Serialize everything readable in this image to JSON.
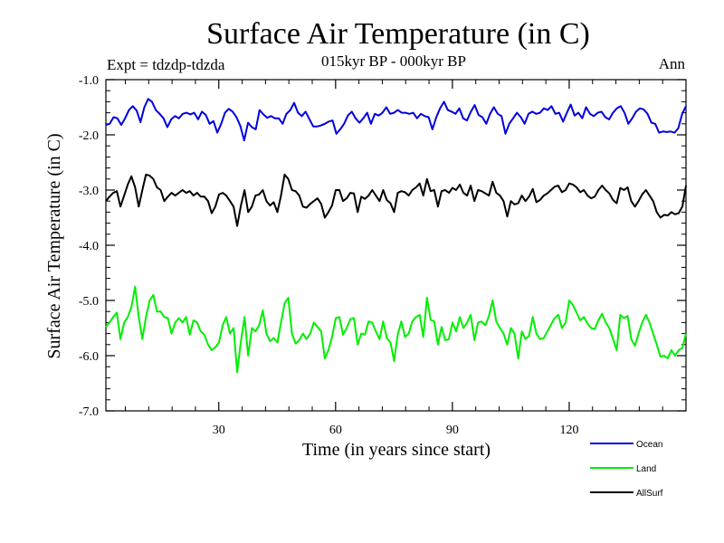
{
  "chart_data": {
    "type": "line",
    "title": "Surface Air Temperature (in C)",
    "subtitle": "015kyr BP - 000kyr BP",
    "left_note": "Expt = tdzdp-tdzda",
    "right_note": "Ann",
    "xlabel": "Time (in years since start)",
    "ylabel": "Surface Air Temperature (in C)",
    "xlim": [
      1,
      150
    ],
    "ylim": [
      -7.0,
      -1.0
    ],
    "xticks": [
      30,
      60,
      90,
      120
    ],
    "xtick_labels": [
      "30",
      "60",
      "90",
      "120"
    ],
    "yticks": [
      -1.0,
      -2.0,
      -3.0,
      -4.0,
      -5.0,
      -6.0,
      -7.0
    ],
    "ytick_labels": [
      "-1.0",
      "-2.0",
      "-3.0",
      "-4.0",
      "-5.0",
      "-6.0",
      "-7.0"
    ],
    "series": [
      {
        "name": "Ocean",
        "color": "#0000dd",
        "values": [
          -1.82,
          -1.8,
          -1.68,
          -1.7,
          -1.82,
          -1.7,
          -1.55,
          -1.48,
          -1.56,
          -1.77,
          -1.5,
          -1.35,
          -1.4,
          -1.55,
          -1.62,
          -1.7,
          -1.86,
          -1.72,
          -1.66,
          -1.7,
          -1.62,
          -1.6,
          -1.63,
          -1.6,
          -1.72,
          -1.58,
          -1.64,
          -1.8,
          -1.75,
          -1.96,
          -1.8,
          -1.6,
          -1.53,
          -1.58,
          -1.68,
          -1.84,
          -2.1,
          -1.78,
          -1.86,
          -1.9,
          -1.55,
          -1.63,
          -1.69,
          -1.66,
          -1.7,
          -1.7,
          -1.8,
          -1.62,
          -1.55,
          -1.42,
          -1.6,
          -1.66,
          -1.58,
          -1.72,
          -1.85,
          -1.85,
          -1.83,
          -1.8,
          -1.76,
          -1.74,
          -1.98,
          -1.9,
          -1.8,
          -1.65,
          -1.58,
          -1.7,
          -1.78,
          -1.7,
          -1.6,
          -1.8,
          -1.62,
          -1.65,
          -1.6,
          -1.5,
          -1.62,
          -1.6,
          -1.55,
          -1.6,
          -1.6,
          -1.62,
          -1.6,
          -1.7,
          -1.62,
          -1.66,
          -1.68,
          -1.9,
          -1.68,
          -1.52,
          -1.4,
          -1.55,
          -1.58,
          -1.62,
          -1.52,
          -1.7,
          -1.74,
          -1.58,
          -1.46,
          -1.64,
          -1.68,
          -1.8,
          -1.62,
          -1.5,
          -1.62,
          -1.66,
          -1.98,
          -1.8,
          -1.7,
          -1.6,
          -1.68,
          -1.8,
          -1.62,
          -1.58,
          -1.62,
          -1.6,
          -1.52,
          -1.55,
          -1.48,
          -1.62,
          -1.6,
          -1.76,
          -1.6,
          -1.45,
          -1.65,
          -1.6,
          -1.7,
          -1.5,
          -1.62,
          -1.66,
          -1.6,
          -1.58,
          -1.68,
          -1.72,
          -1.6,
          -1.52,
          -1.48,
          -1.6,
          -1.8,
          -1.7,
          -1.58,
          -1.52,
          -1.54,
          -1.62,
          -1.78,
          -1.8,
          -1.96,
          -1.94,
          -1.95,
          -1.94,
          -1.96,
          -1.88,
          -1.62,
          -1.48
        ]
      },
      {
        "name": "Land",
        "color": "#00ee00",
        "values": [
          -5.48,
          -5.4,
          -5.3,
          -5.22,
          -5.7,
          -5.4,
          -5.3,
          -5.12,
          -4.75,
          -5.3,
          -5.7,
          -5.3,
          -5.0,
          -4.9,
          -5.2,
          -5.2,
          -5.3,
          -5.32,
          -5.6,
          -5.4,
          -5.32,
          -5.4,
          -5.3,
          -5.62,
          -5.36,
          -5.4,
          -5.56,
          -5.62,
          -5.8,
          -5.9,
          -5.85,
          -5.76,
          -5.45,
          -5.3,
          -5.6,
          -5.5,
          -6.3,
          -5.74,
          -5.3,
          -6.0,
          -5.5,
          -5.56,
          -5.45,
          -5.18,
          -5.6,
          -5.74,
          -5.68,
          -5.76,
          -5.4,
          -5.05,
          -4.95,
          -5.6,
          -5.78,
          -5.72,
          -5.6,
          -5.7,
          -5.6,
          -5.4,
          -5.48,
          -5.56,
          -6.05,
          -5.9,
          -5.66,
          -5.32,
          -5.3,
          -5.62,
          -5.5,
          -5.34,
          -5.32,
          -5.8,
          -5.6,
          -5.62,
          -5.38,
          -5.4,
          -5.56,
          -5.7,
          -5.38,
          -5.68,
          -5.76,
          -6.1,
          -5.62,
          -5.38,
          -5.66,
          -5.6,
          -5.38,
          -5.3,
          -5.26,
          -5.66,
          -4.95,
          -5.35,
          -5.38,
          -5.8,
          -5.48,
          -5.72,
          -5.7,
          -5.4,
          -5.56,
          -5.3,
          -5.5,
          -5.4,
          -5.26,
          -5.72,
          -5.4,
          -5.38,
          -5.45,
          -5.28,
          -5.0,
          -5.38,
          -5.5,
          -5.6,
          -5.8,
          -5.5,
          -5.6,
          -6.05,
          -5.56,
          -5.7,
          -5.64,
          -5.3,
          -5.6,
          -5.7,
          -5.68,
          -5.56,
          -5.44,
          -5.32,
          -5.26,
          -5.5,
          -5.4,
          -5.0,
          -5.08,
          -5.22,
          -5.36,
          -5.3,
          -5.42,
          -5.5,
          -5.52,
          -5.36,
          -5.24,
          -5.4,
          -5.5,
          -5.7,
          -5.9,
          -5.26,
          -5.32,
          -5.28,
          -5.7,
          -5.82,
          -5.6,
          -5.4,
          -5.26,
          -5.4,
          -5.6,
          -5.8,
          -6.02,
          -6.0,
          -6.05,
          -5.9,
          -6.0,
          -5.9,
          -5.86,
          -5.6
        ]
      },
      {
        "name": "AllSurf",
        "color": "#000000",
        "values": [
          -3.2,
          -3.12,
          -3.05,
          -3.02,
          -3.3,
          -3.1,
          -2.9,
          -2.75,
          -2.95,
          -3.3,
          -3.0,
          -2.72,
          -2.74,
          -2.8,
          -2.95,
          -3.0,
          -3.2,
          -3.12,
          -3.05,
          -3.1,
          -3.05,
          -3.0,
          -3.05,
          -3.02,
          -3.1,
          -3.05,
          -3.12,
          -3.12,
          -3.2,
          -3.42,
          -3.3,
          -3.08,
          -3.05,
          -3.1,
          -3.2,
          -3.3,
          -3.65,
          -3.28,
          -3.0,
          -3.4,
          -3.3,
          -3.1,
          -3.08,
          -3.0,
          -3.2,
          -3.28,
          -3.22,
          -3.4,
          -3.1,
          -2.72,
          -2.8,
          -3.0,
          -3.02,
          -3.1,
          -3.3,
          -3.32,
          -3.25,
          -3.2,
          -3.15,
          -3.25,
          -3.5,
          -3.4,
          -3.28,
          -3.0,
          -3.0,
          -3.2,
          -3.15,
          -3.05,
          -3.06,
          -3.4,
          -3.12,
          -3.16,
          -3.1,
          -3.0,
          -3.1,
          -3.2,
          -3.0,
          -3.18,
          -3.24,
          -3.4,
          -3.05,
          -3.02,
          -3.04,
          -3.1,
          -3.0,
          -2.95,
          -2.88,
          -3.1,
          -2.8,
          -3.02,
          -3.0,
          -3.3,
          -3.02,
          -3.0,
          -3.05,
          -2.96,
          -3.0,
          -2.9,
          -3.05,
          -3.1,
          -2.92,
          -3.2,
          -3.0,
          -3.02,
          -3.06,
          -3.1,
          -2.85,
          -3.05,
          -3.1,
          -3.2,
          -3.48,
          -3.2,
          -3.26,
          -3.24,
          -3.1,
          -3.2,
          -3.12,
          -2.98,
          -3.22,
          -3.18,
          -3.1,
          -3.06,
          -3.0,
          -2.94,
          -2.92,
          -3.04,
          -3.0,
          -2.88,
          -2.9,
          -2.95,
          -3.04,
          -3.0,
          -3.1,
          -3.15,
          -3.12,
          -3.0,
          -2.92,
          -3.0,
          -3.06,
          -3.18,
          -3.24,
          -2.96,
          -3.0,
          -2.95,
          -3.2,
          -3.3,
          -3.2,
          -3.08,
          -3.0,
          -3.1,
          -3.2,
          -3.4,
          -3.5,
          -3.45,
          -3.46,
          -3.4,
          -3.44,
          -3.42,
          -3.3,
          -2.92
        ]
      }
    ],
    "legend": {
      "position": "bottom-right",
      "entries": [
        {
          "label": "Ocean",
          "color": "#0000dd"
        },
        {
          "label": "Land",
          "color": "#00ee00"
        },
        {
          "label": "AllSurf",
          "color": "#000000"
        }
      ]
    }
  }
}
